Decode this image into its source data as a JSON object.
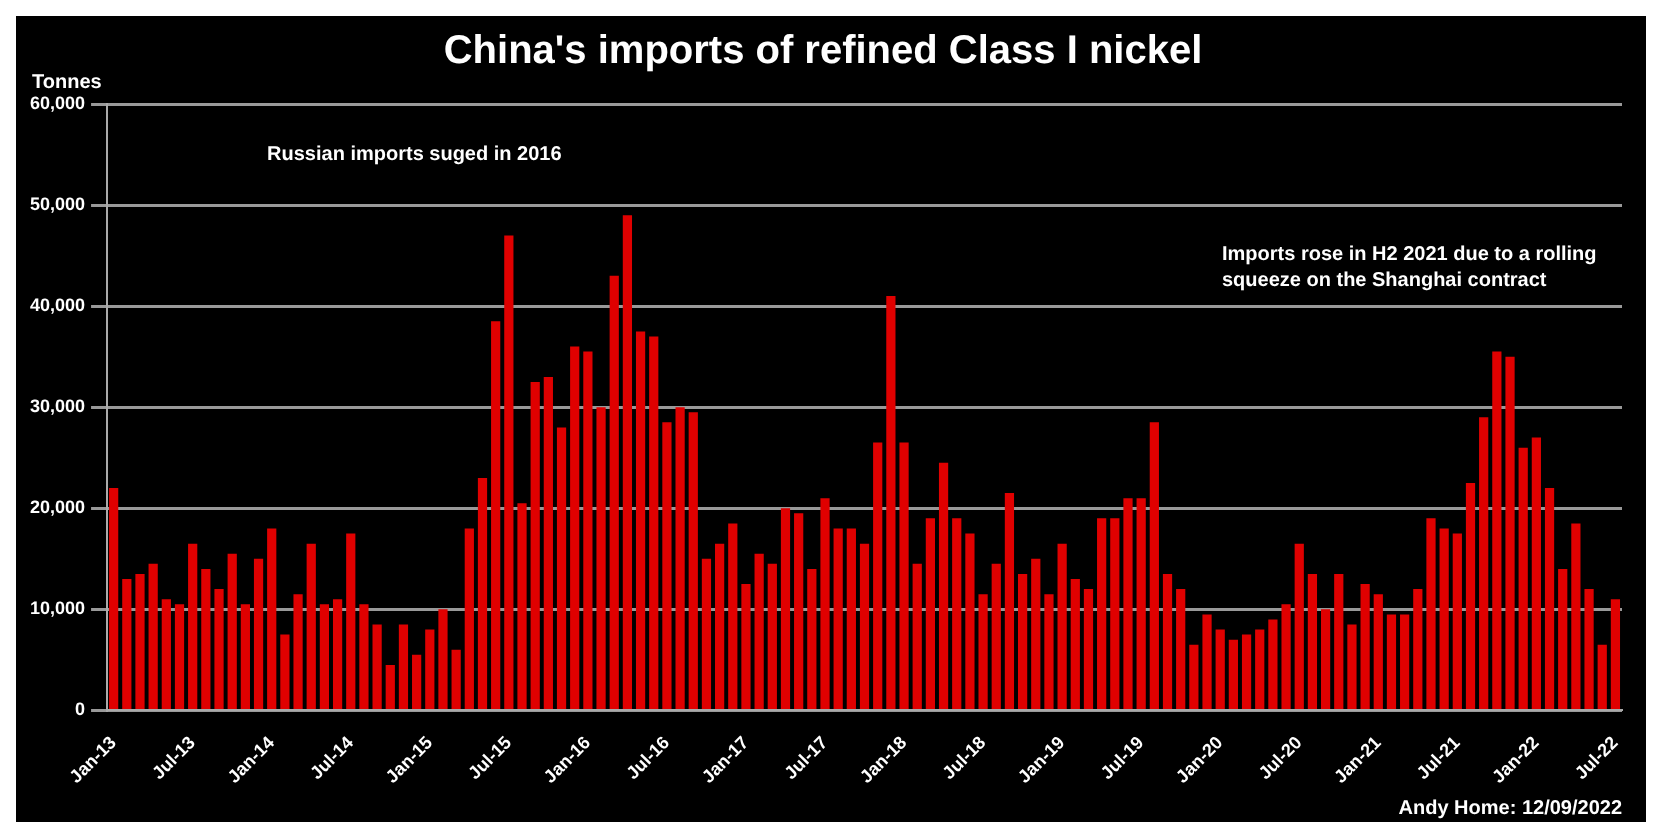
{
  "chart_data": {
    "type": "bar",
    "title": "China's imports of refined Class I nickel",
    "ylabel": "Tonnes",
    "categories": [
      "Jan-13",
      null,
      null,
      null,
      null,
      null,
      "Jul-13",
      null,
      null,
      null,
      null,
      null,
      "Jan-14",
      null,
      null,
      null,
      null,
      null,
      "Jul-14",
      null,
      null,
      null,
      null,
      null,
      "Jan-15",
      null,
      null,
      null,
      null,
      null,
      "Jul-15",
      null,
      null,
      null,
      null,
      null,
      "Jan-16",
      null,
      null,
      null,
      null,
      null,
      "Jul-16",
      null,
      null,
      null,
      null,
      null,
      "Jan-17",
      null,
      null,
      null,
      null,
      null,
      "Jul-17",
      null,
      null,
      null,
      null,
      null,
      "Jan-18",
      null,
      null,
      null,
      null,
      null,
      "Jul-18",
      null,
      null,
      null,
      null,
      null,
      "Jan-19",
      null,
      null,
      null,
      null,
      null,
      "Jul-19",
      null,
      null,
      null,
      null,
      null,
      "Jan-20",
      null,
      null,
      null,
      null,
      null,
      "Jul-20",
      null,
      null,
      null,
      null,
      null,
      "Jan-21",
      null,
      null,
      null,
      null,
      null,
      "Jul-21",
      null,
      null,
      null,
      null,
      null,
      "Jan-22",
      null,
      null,
      null,
      null,
      null,
      "Jul-22"
    ],
    "values": [
      22000,
      13000,
      13500,
      14500,
      11000,
      10500,
      16500,
      14000,
      12000,
      15500,
      10500,
      15000,
      18000,
      7500,
      11500,
      16500,
      10500,
      11000,
      17500,
      10500,
      8500,
      4500,
      8500,
      5500,
      8000,
      10000,
      6000,
      18000,
      23000,
      38500,
      47000,
      20500,
      32500,
      33000,
      28000,
      36000,
      35500,
      30000,
      43000,
      49000,
      37500,
      37000,
      28500,
      30000,
      29500,
      15000,
      16500,
      18500,
      12500,
      15500,
      14500,
      20000,
      19500,
      14000,
      21000,
      18000,
      18000,
      16500,
      26500,
      41000,
      26500,
      14500,
      19000,
      24500,
      19000,
      17500,
      11500,
      14500,
      21500,
      13500,
      15000,
      11500,
      16500,
      13000,
      12000,
      19000,
      19000,
      21000,
      21000,
      28500,
      13500,
      12000,
      6500,
      9500,
      8000,
      7000,
      7500,
      8000,
      9000,
      10500,
      16500,
      13500,
      10000,
      13500,
      8500,
      12500,
      11500,
      9500,
      9500,
      12000,
      19000,
      18000,
      17500,
      22500,
      29000,
      35500,
      35000,
      26000,
      27000,
      22000,
      14000,
      18500,
      12000,
      6500,
      11000
    ],
    "color": "#e00000",
    "ylim": [
      0,
      60000
    ],
    "yticks": [
      0,
      {
        "value": 10000,
        "label": "10,000"
      },
      {
        "value": 20000,
        "label": "20,000"
      },
      {
        "value": 30000,
        "label": "30,000"
      },
      {
        "value": 40000,
        "label": "40,000"
      },
      {
        "value": 50000,
        "label": "50,000"
      },
      {
        "value": 60000,
        "label": "60,000"
      }
    ],
    "grid": "y",
    "annotations": [
      "Russian imports suged in 2016",
      "Imports rose in H2 2021 due to a rolling squeeze on the Shanghai contract",
      "Andy Home: 12/09/2022"
    ]
  }
}
